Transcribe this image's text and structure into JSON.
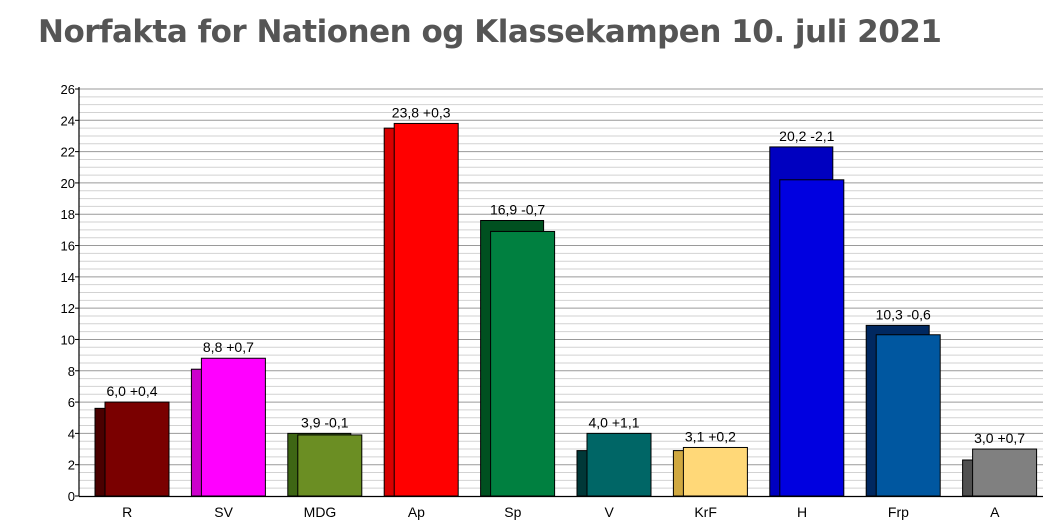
{
  "page": {
    "title": "Norfakta for Nationen og Klassekampen 10. juli 2021"
  },
  "chart_data": {
    "type": "bar",
    "title": "Norfakta for Nationen og Klassekampen 10. juli 2021",
    "xlabel": "",
    "ylabel": "",
    "ylim": [
      0,
      26
    ],
    "y_ticks": [
      0,
      2,
      4,
      6,
      8,
      10,
      12,
      14,
      16,
      18,
      20,
      22,
      24,
      26
    ],
    "grid": true,
    "legend": "none",
    "categories": [
      "R",
      "SV",
      "MDG",
      "Ap",
      "Sp",
      "V",
      "KrF",
      "H",
      "Frp",
      "A"
    ],
    "series": [
      {
        "values": [
          5.6,
          8.1,
          4.0,
          23.5,
          17.6,
          2.9,
          2.9,
          22.3,
          10.9,
          2.3
        ]
      },
      {
        "values": [
          6.0,
          8.8,
          3.9,
          23.8,
          16.9,
          4.0,
          3.1,
          20.2,
          10.3,
          3.0
        ]
      }
    ],
    "data_labels": [
      "6,0 +0,4",
      "8,8 +0,7",
      "3,9 -0,1",
      "23,8 +0,3",
      "16,9 -0,7",
      "4,0 +1,1",
      "3,1 +0,2",
      "20,2 -2,1",
      "10,3 -0,6",
      "3,0 +0,7"
    ],
    "colors_current": [
      "#7a0000",
      "#ff00ff",
      "#6b8e23",
      "#ff0000",
      "#008040",
      "#006666",
      "#ffd878",
      "#0000e0",
      "#0057a0",
      "#808080"
    ],
    "colors_previous": [
      "#4a0000",
      "#cc00cc",
      "#3e6614",
      "#d80000",
      "#005020",
      "#003838",
      "#d0a840",
      "#0000c0",
      "#002860",
      "#505050"
    ]
  }
}
